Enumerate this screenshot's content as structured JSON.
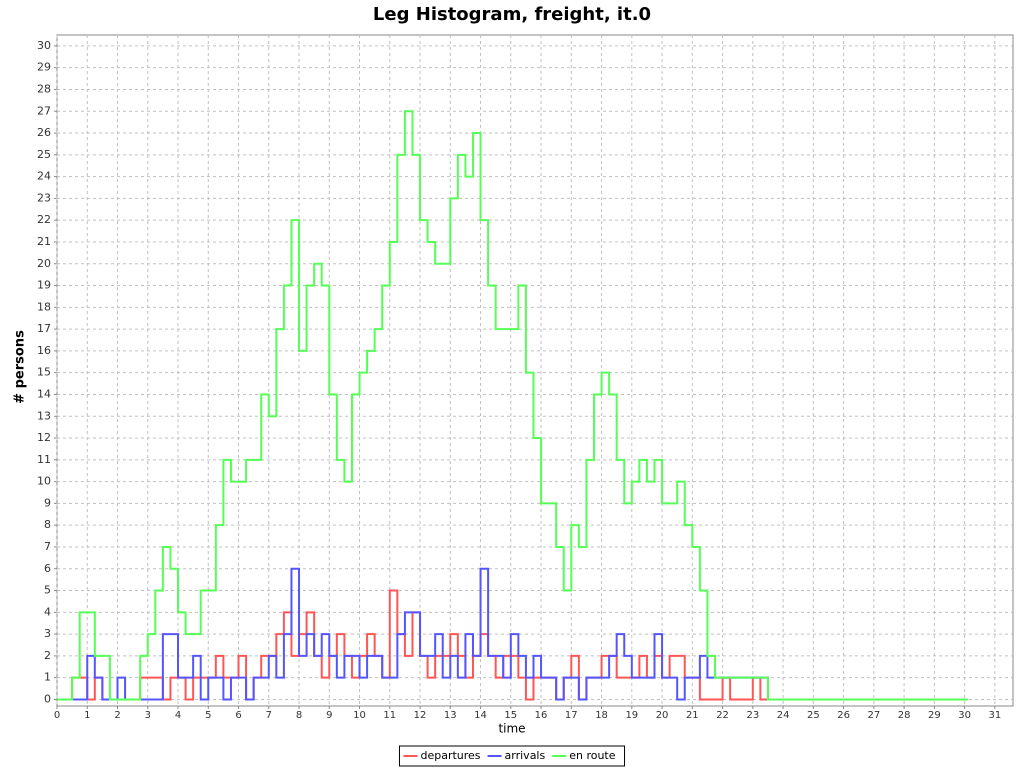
{
  "chart_data": {
    "type": "line",
    "step": true,
    "title": "Leg Histogram, freight, it.0",
    "x_label": "time",
    "y_label": "# persons",
    "xlim": [
      0,
      31.6
    ],
    "ylim": [
      -0.3,
      30.5
    ],
    "xticks": [
      0,
      1,
      2,
      3,
      4,
      5,
      6,
      7,
      8,
      9,
      10,
      11,
      12,
      13,
      14,
      15,
      16,
      17,
      18,
      19,
      20,
      21,
      22,
      23,
      24,
      25,
      26,
      27,
      28,
      29,
      30,
      31
    ],
    "yticks": [
      0,
      1,
      2,
      3,
      4,
      5,
      6,
      7,
      8,
      9,
      10,
      11,
      12,
      13,
      14,
      15,
      16,
      17,
      18,
      19,
      20,
      21,
      22,
      23,
      24,
      25,
      26,
      27,
      28,
      29,
      30
    ],
    "grid": true,
    "legend": "bottom",
    "x": [
      0,
      0.25,
      0.5,
      0.75,
      1,
      1.25,
      1.5,
      1.75,
      2,
      2.25,
      2.5,
      2.75,
      3,
      3.25,
      3.5,
      3.75,
      4,
      4.25,
      4.5,
      4.75,
      5,
      5.25,
      5.5,
      5.75,
      6,
      6.25,
      6.5,
      6.75,
      7,
      7.25,
      7.5,
      7.75,
      8,
      8.25,
      8.5,
      8.75,
      9,
      9.25,
      9.5,
      9.75,
      10,
      10.25,
      10.5,
      10.75,
      11,
      11.25,
      11.5,
      11.75,
      12,
      12.25,
      12.5,
      12.75,
      13,
      13.25,
      13.5,
      13.75,
      14,
      14.25,
      14.5,
      14.75,
      15,
      15.25,
      15.5,
      15.75,
      16,
      16.25,
      16.5,
      16.75,
      17,
      17.25,
      17.5,
      17.75,
      18,
      18.25,
      18.5,
      18.75,
      19,
      19.25,
      19.5,
      19.75,
      20,
      20.25,
      20.5,
      20.75,
      21,
      21.25,
      21.5,
      21.75,
      22,
      22.25,
      22.5,
      22.75,
      23,
      23.25,
      23.5,
      23.75,
      24,
      30.1
    ],
    "series": [
      {
        "name": "departures",
        "color": "#ff5555",
        "values": [
          0,
          0,
          1,
          1,
          0,
          1,
          0,
          0,
          0,
          0,
          0,
          1,
          1,
          1,
          0,
          1,
          1,
          0,
          1,
          1,
          1,
          2,
          1,
          1,
          2,
          0,
          1,
          2,
          2,
          3,
          4,
          2,
          3,
          4,
          2,
          1,
          2,
          3,
          2,
          1,
          2,
          3,
          2,
          1,
          5,
          3,
          2,
          4,
          2,
          1,
          2,
          2,
          3,
          2,
          1,
          2,
          3,
          2,
          1,
          2,
          2,
          1,
          0,
          1,
          1,
          1,
          0,
          1,
          2,
          0,
          1,
          1,
          2,
          2,
          1,
          1,
          1,
          2,
          1,
          2,
          1,
          2,
          2,
          1,
          1,
          0,
          0,
          0,
          1,
          0,
          0,
          0,
          1,
          0,
          0,
          0,
          0,
          0
        ]
      },
      {
        "name": "arrivals",
        "color": "#5555ff",
        "values": [
          0,
          0,
          0,
          0,
          2,
          1,
          0,
          0,
          1,
          0,
          0,
          0,
          0,
          0,
          3,
          3,
          1,
          1,
          2,
          0,
          1,
          1,
          0,
          1,
          1,
          0,
          1,
          1,
          2,
          1,
          3,
          6,
          2,
          3,
          2,
          3,
          2,
          1,
          2,
          2,
          1,
          2,
          2,
          1,
          1,
          3,
          4,
          4,
          2,
          2,
          3,
          1,
          2,
          1,
          3,
          2,
          6,
          2,
          2,
          1,
          3,
          2,
          1,
          2,
          1,
          1,
          0,
          1,
          1,
          0,
          1,
          1,
          1,
          2,
          3,
          2,
          1,
          1,
          1,
          3,
          1,
          1,
          0,
          1,
          1,
          2,
          1,
          1,
          1,
          1,
          1,
          1,
          1,
          1,
          0,
          0,
          0,
          0
        ]
      },
      {
        "name": "en route",
        "color": "#55ff55",
        "values": [
          0,
          0,
          1,
          4,
          4,
          2,
          2,
          0,
          0,
          0,
          0,
          2,
          3,
          5,
          7,
          6,
          4,
          3,
          3,
          5,
          5,
          8,
          11,
          10,
          10,
          11,
          11,
          14,
          13,
          17,
          19,
          22,
          16,
          19,
          20,
          19,
          14,
          11,
          10,
          14,
          15,
          16,
          17,
          19,
          21,
          25,
          27,
          25,
          22,
          21,
          20,
          20,
          23,
          25,
          24,
          26,
          22,
          19,
          17,
          17,
          17,
          19,
          15,
          12,
          9,
          9,
          7,
          5,
          8,
          7,
          11,
          14,
          15,
          14,
          11,
          9,
          10,
          11,
          10,
          11,
          9,
          9,
          10,
          8,
          7,
          5,
          2,
          1,
          1,
          1,
          1,
          1,
          1,
          1,
          0,
          0,
          0,
          0
        ]
      }
    ]
  }
}
